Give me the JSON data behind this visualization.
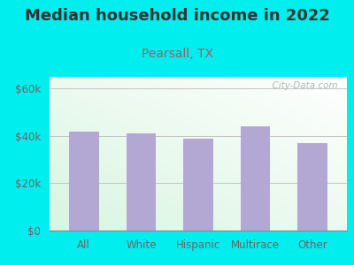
{
  "title": "Median household income in 2022",
  "subtitle": "Pearsall, TX",
  "categories": [
    "All",
    "White",
    "Hispanic",
    "Multirace",
    "Other"
  ],
  "values": [
    42000,
    41000,
    39000,
    44000,
    37000
  ],
  "bar_color": "#b3a8d4",
  "title_fontsize": 13,
  "subtitle_fontsize": 10,
  "title_color": "#333333",
  "subtitle_color": "#996666",
  "tick_label_color": "#666666",
  "ytick_labels": [
    "$0",
    "$20k",
    "$40k",
    "$60k"
  ],
  "ytick_values": [
    0,
    20000,
    40000,
    60000
  ],
  "ylim": [
    0,
    65000
  ],
  "background_outer": "#00eeee",
  "watermark": "  City-Data.com"
}
